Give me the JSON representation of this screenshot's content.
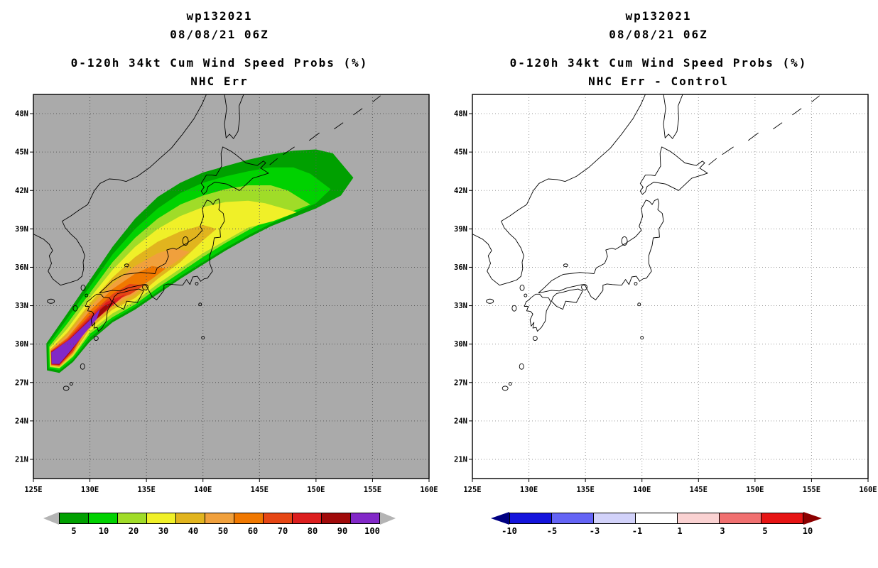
{
  "panels": [
    {
      "title1": "wp132021",
      "title2": "08/08/21 06Z",
      "subtitle1": "0-120h 34kt Cum Wind Speed Probs (%)",
      "subtitle2": "NHC Err",
      "map_bg": "#aaaaaa",
      "grid_color": "#5a5a5a",
      "colorbar": {
        "mode": "center",
        "arrow_left": "#b4b4b4",
        "arrow_right": "#b4b4b4",
        "cells": [
          "#00a000",
          "#00d200",
          "#a0dc28",
          "#f0f028",
          "#e1b41e",
          "#f0a03c",
          "#f07800",
          "#e64614",
          "#dc1e1e",
          "#a00a0a",
          "#8228c8"
        ],
        "labels": [
          "5",
          "10",
          "20",
          "30",
          "40",
          "50",
          "60",
          "70",
          "80",
          "90",
          "100"
        ]
      }
    },
    {
      "title1": "wp132021",
      "title2": "08/08/21 06Z",
      "subtitle1": "0-120h 34kt Cum Wind Speed Probs (%)",
      "subtitle2": "NHC Err - Control",
      "map_bg": "#ffffff",
      "grid_color": "#9a9a9a",
      "colorbar": {
        "mode": "boundary",
        "arrow_left": "#000082",
        "arrow_right": "#8c0000",
        "cells": [
          "#1414dc",
          "#6464f5",
          "#d2d2fa",
          "#ffffff",
          "#fad2d2",
          "#f07070",
          "#e61414"
        ],
        "labels": [
          "-10",
          "-5",
          "-3",
          "-1",
          "1",
          "3",
          "5",
          "10"
        ]
      }
    }
  ],
  "axes": {
    "lat_labels": [
      "21N",
      "24N",
      "27N",
      "30N",
      "33N",
      "36N",
      "39N",
      "42N",
      "45N",
      "48N"
    ],
    "lat_values": [
      21,
      24,
      27,
      30,
      33,
      36,
      39,
      42,
      45,
      48
    ],
    "lon_labels": [
      "125E",
      "130E",
      "135E",
      "140E",
      "145E",
      "150E",
      "155E",
      "160E"
    ],
    "lon_values": [
      125,
      130,
      135,
      140,
      145,
      150,
      155,
      160
    ]
  },
  "chart_data": {
    "type": "contour-map",
    "storm_id": "wp132021",
    "initialization": "08/08/21 06Z",
    "title": "0-120h 34kt Cum Wind Speed Probs (%)",
    "lon_range": [
      125,
      160
    ],
    "lat_range": [
      19.5,
      49.5
    ],
    "prob_colorbar_ticks": [
      5,
      10,
      20,
      30,
      40,
      50,
      60,
      70,
      80,
      90,
      100
    ],
    "diff_colorbar_ticks": [
      -10,
      -5,
      -3,
      -1,
      1,
      3,
      5,
      10
    ],
    "panels": [
      {
        "name": "NHC Err",
        "shaded": true,
        "levels": [
          {
            "level": 5,
            "color": "#00a000",
            "polygon": [
              [
                126.15,
                30.05
              ],
              [
                128,
                32.4
              ],
              [
                130,
                35.0
              ],
              [
                132,
                37.6
              ],
              [
                134,
                39.8
              ],
              [
                136,
                41.5
              ],
              [
                138,
                42.6
              ],
              [
                140,
                43.4
              ],
              [
                142,
                43.9
              ],
              [
                144,
                44.4
              ],
              [
                146,
                44.8
              ],
              [
                148,
                45.1
              ],
              [
                150,
                45.2
              ],
              [
                151.5,
                44.9
              ],
              [
                153.3,
                43.0
              ],
              [
                152.2,
                41.6
              ],
              [
                150,
                40.6
              ],
              [
                148,
                39.9
              ],
              [
                146,
                39.2
              ],
              [
                144,
                38.3
              ],
              [
                142,
                37.3
              ],
              [
                140,
                36.2
              ],
              [
                138,
                35.1
              ],
              [
                136,
                33.9
              ],
              [
                134,
                32.7
              ],
              [
                132,
                31.7
              ],
              [
                130,
                30.2
              ],
              [
                128.5,
                28.6
              ],
              [
                127.3,
                27.75
              ],
              [
                126.2,
                27.95
              ]
            ]
          },
          {
            "level": 10,
            "color": "#00d200",
            "polygon": [
              [
                126.3,
                29.95
              ],
              [
                128,
                32.0
              ],
              [
                130,
                34.5
              ],
              [
                132,
                37.0
              ],
              [
                134,
                39.0
              ],
              [
                136,
                40.6
              ],
              [
                138,
                41.8
              ],
              [
                140,
                42.6
              ],
              [
                142,
                43.1
              ],
              [
                144,
                43.5
              ],
              [
                146,
                43.8
              ],
              [
                148,
                43.8
              ],
              [
                149.5,
                43.3
              ],
              [
                151.3,
                42.1
              ],
              [
                150,
                41.0
              ],
              [
                148,
                40.2
              ],
              [
                146,
                39.4
              ],
              [
                144,
                38.5
              ],
              [
                142,
                37.5
              ],
              [
                140,
                36.4
              ],
              [
                138,
                35.3
              ],
              [
                136,
                34.1
              ],
              [
                134,
                32.9
              ],
              [
                132,
                31.9
              ],
              [
                130,
                30.5
              ],
              [
                128.5,
                28.8
              ],
              [
                127.3,
                27.95
              ],
              [
                126.35,
                28.1
              ]
            ]
          },
          {
            "level": 20,
            "color": "#a0dc28",
            "polygon": [
              [
                126.4,
                29.8
              ],
              [
                128,
                31.6
              ],
              [
                130,
                34.0
              ],
              [
                132,
                36.4
              ],
              [
                134,
                38.3
              ],
              [
                136,
                39.8
              ],
              [
                138,
                40.9
              ],
              [
                140,
                41.6
              ],
              [
                142,
                42.1
              ],
              [
                144,
                42.4
              ],
              [
                146,
                42.4
              ],
              [
                147.5,
                42.0
              ],
              [
                149.5,
                40.9
              ],
              [
                148,
                40.4
              ],
              [
                146,
                39.8
              ],
              [
                144,
                38.9
              ],
              [
                142,
                37.9
              ],
              [
                140,
                36.8
              ],
              [
                138,
                35.6
              ],
              [
                136,
                34.4
              ],
              [
                134,
                33.1
              ],
              [
                132,
                32.1
              ],
              [
                130,
                30.8
              ],
              [
                128.5,
                29.0
              ],
              [
                127.3,
                28.1
              ],
              [
                126.45,
                28.2
              ]
            ]
          },
          {
            "level": 30,
            "color": "#f0f028",
            "polygon": [
              [
                126.45,
                29.7
              ],
              [
                128,
                31.2
              ],
              [
                130,
                33.6
              ],
              [
                132,
                35.8
              ],
              [
                134,
                37.6
              ],
              [
                136,
                39.0
              ],
              [
                138,
                40.0
              ],
              [
                140,
                40.7
              ],
              [
                142,
                41.1
              ],
              [
                144,
                41.2
              ],
              [
                145.5,
                41.0
              ],
              [
                148.3,
                40.3
              ],
              [
                146.2,
                39.6
              ],
              [
                144,
                39.1
              ],
              [
                142,
                38.1
              ],
              [
                140,
                37.1
              ],
              [
                138,
                35.9
              ],
              [
                136,
                34.7
              ],
              [
                134,
                33.35
              ],
              [
                132,
                32.4
              ],
              [
                130,
                31.0
              ],
              [
                128.5,
                29.1
              ],
              [
                127.3,
                28.15
              ],
              [
                126.5,
                28.25
              ]
            ]
          },
          {
            "level": 40,
            "color": "#e1b41e",
            "polygon": [
              [
                126.5,
                29.6
              ],
              [
                128,
                30.9
              ],
              [
                130,
                33.2
              ],
              [
                132,
                35.2
              ],
              [
                134,
                36.8
              ],
              [
                136,
                38.0
              ],
              [
                138,
                38.8
              ],
              [
                140,
                39.3
              ],
              [
                141.2,
                39.0
              ],
              [
                140,
                38.1
              ],
              [
                138,
                36.4
              ],
              [
                136,
                35.1
              ],
              [
                134,
                33.6
              ],
              [
                132,
                32.7
              ],
              [
                130,
                31.2
              ],
              [
                128.5,
                29.2
              ],
              [
                127.3,
                28.2
              ],
              [
                126.55,
                28.3
              ]
            ]
          },
          {
            "level": 50,
            "color": "#f0a03c",
            "polygon": [
              [
                126.52,
                29.55
              ],
              [
                128,
                30.7
              ],
              [
                130,
                32.9
              ],
              [
                132,
                34.7
              ],
              [
                134,
                36.1
              ],
              [
                136,
                37.1
              ],
              [
                137.5,
                37.5
              ],
              [
                138.8,
                37.2
              ],
              [
                137.6,
                36.4
              ],
              [
                136,
                35.5
              ],
              [
                134,
                33.9
              ],
              [
                132,
                33.0
              ],
              [
                130,
                31.4
              ],
              [
                128.5,
                29.3
              ],
              [
                127.3,
                28.25
              ],
              [
                126.57,
                28.33
              ]
            ]
          },
          {
            "level": 60,
            "color": "#f07800",
            "polygon": [
              [
                126.54,
                29.5
              ],
              [
                128,
                30.5
              ],
              [
                130,
                32.6
              ],
              [
                132,
                34.3
              ],
              [
                134,
                35.5
              ],
              [
                135.5,
                36.1
              ],
              [
                136.7,
                35.9
              ],
              [
                135.5,
                35.1
              ],
              [
                134,
                34.2
              ],
              [
                132,
                33.2
              ],
              [
                130,
                31.6
              ],
              [
                128.5,
                29.35
              ],
              [
                127.3,
                28.3
              ],
              [
                126.58,
                28.36
              ]
            ]
          },
          {
            "level": 70,
            "color": "#e64614",
            "polygon": [
              [
                126.55,
                29.46
              ],
              [
                128,
                30.4
              ],
              [
                130,
                32.3
              ],
              [
                132,
                33.9
              ],
              [
                133.5,
                34.7
              ],
              [
                134.8,
                34.6
              ],
              [
                133.6,
                33.9
              ],
              [
                132,
                33.35
              ],
              [
                130,
                31.8
              ],
              [
                128.5,
                29.4
              ],
              [
                127.3,
                28.33
              ],
              [
                126.59,
                28.39
              ]
            ]
          },
          {
            "level": 80,
            "color": "#dc1e1e",
            "polygon": [
              [
                126.56,
                29.42
              ],
              [
                128,
                30.3
              ],
              [
                130,
                32.1
              ],
              [
                131.5,
                33.3
              ],
              [
                133.2,
                33.9
              ],
              [
                132.2,
                33.15
              ],
              [
                130.6,
                31.95
              ],
              [
                129.3,
                30.6
              ],
              [
                128.4,
                29.45
              ],
              [
                127.3,
                28.36
              ],
              [
                126.6,
                28.41
              ]
            ]
          },
          {
            "level": 90,
            "color": "#a00a0a",
            "polygon": [
              [
                126.57,
                29.39
              ],
              [
                128,
                30.2
              ],
              [
                130,
                31.95
              ],
              [
                131.3,
                33.0
              ],
              [
                132.3,
                33.4
              ],
              [
                131.6,
                32.8
              ],
              [
                130.3,
                31.7
              ],
              [
                129.2,
                30.5
              ],
              [
                128.3,
                29.4
              ],
              [
                127.3,
                28.4
              ],
              [
                126.61,
                28.43
              ]
            ]
          },
          {
            "level": 100,
            "color": "#8228c8",
            "polygon": [
              [
                126.58,
                29.35
              ],
              [
                128.2,
                30.35
              ],
              [
                129.9,
                31.8
              ],
              [
                130.9,
                32.75
              ],
              [
                130.6,
                31.95
              ],
              [
                129.4,
                30.7
              ],
              [
                128.3,
                29.5
              ],
              [
                127.3,
                28.45
              ],
              [
                126.62,
                28.45
              ]
            ]
          }
        ]
      },
      {
        "name": "NHC Err - Control",
        "shaded": false,
        "levels": []
      }
    ]
  }
}
